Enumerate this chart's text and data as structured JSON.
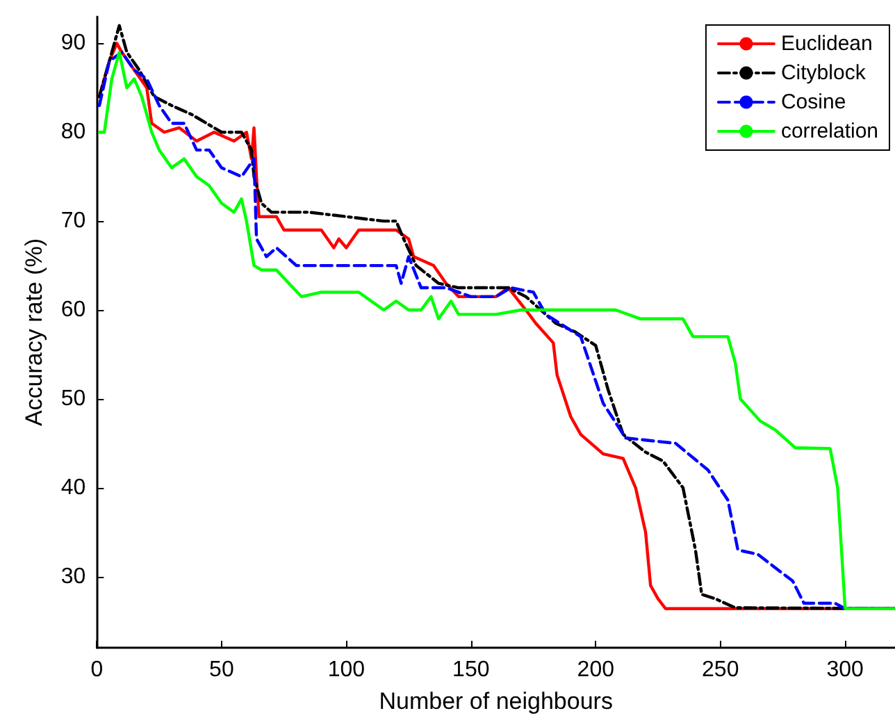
{
  "chart_data": {
    "type": "line",
    "xlabel": "Number of neighbours",
    "ylabel": "Accuracy rate (%)",
    "xlim": [
      0,
      320
    ],
    "xticks": [
      0,
      50,
      100,
      150,
      200,
      250,
      300
    ],
    "ylim": [
      22,
      93
    ],
    "yticks": [
      30,
      40,
      50,
      60,
      70,
      80,
      90
    ],
    "grid": false,
    "legend": "top right",
    "marker": "none",
    "series": [
      {
        "name": "Euclidean",
        "color": "#ff0000",
        "line_style": "solid",
        "x": [
          1,
          5,
          8,
          10,
          15,
          20,
          22,
          27,
          33,
          40,
          47,
          55,
          60,
          62,
          63,
          64,
          65,
          72,
          75,
          90,
          95,
          97,
          100,
          105,
          120,
          125,
          127,
          135,
          140,
          145,
          160,
          165,
          172,
          176,
          183,
          184.5,
          190,
          194,
          203,
          211,
          216,
          220,
          222,
          225,
          228,
          320
        ],
        "values": [
          84,
          88,
          90,
          89,
          87,
          85,
          81,
          80,
          80.5,
          79,
          80,
          79,
          80,
          77,
          80.5,
          75,
          70.5,
          70.5,
          69,
          69,
          67,
          68,
          67,
          69,
          69,
          68,
          66,
          65,
          63,
          61.5,
          61.5,
          62.5,
          60,
          58.5,
          56.3,
          52.7,
          48,
          46,
          43.8,
          43.3,
          40,
          35,
          29,
          27.5,
          26.4,
          26.4
        ]
      },
      {
        "name": "Cityblock",
        "color": "#000000",
        "line_style": "dashdot",
        "x": [
          1,
          5,
          9,
          12,
          17,
          23,
          30,
          38,
          50,
          58,
          62,
          63,
          66,
          70,
          85,
          100,
          115,
          120,
          123,
          128,
          137,
          145,
          165,
          172,
          184,
          192,
          200,
          205,
          211,
          220,
          227,
          235,
          240,
          242.5,
          248,
          256,
          320
        ],
        "values": [
          84,
          88,
          92,
          89,
          87,
          84,
          83,
          82,
          80,
          80,
          78,
          75,
          72,
          71,
          71,
          70.5,
          70,
          70,
          68,
          65,
          63,
          62.5,
          62.5,
          61.5,
          58.5,
          57.5,
          56,
          51,
          46,
          44,
          43,
          40,
          33,
          28,
          27.5,
          26.5,
          26.4
        ]
      },
      {
        "name": "Cosine",
        "color": "#0000ff",
        "line_style": "dashed",
        "x": [
          1,
          5,
          10,
          15,
          20,
          25,
          30,
          35,
          40,
          45,
          50,
          58,
          63,
          64,
          68,
          72,
          80,
          120,
          122,
          125,
          130,
          140,
          150,
          160,
          166,
          175,
          180,
          194,
          203,
          212,
          232,
          245,
          253,
          257,
          265,
          279,
          283.5,
          296,
          300,
          320
        ],
        "values": [
          83,
          88,
          89,
          87,
          86,
          83,
          81,
          81,
          78,
          78,
          76,
          75,
          77,
          68,
          66,
          67,
          65,
          65,
          63,
          66,
          62.5,
          62.5,
          61.5,
          61.5,
          62.5,
          62,
          59.5,
          57,
          49.5,
          45.6,
          45,
          42,
          38.6,
          33,
          32.5,
          29.5,
          27,
          27,
          26.4,
          26.4
        ]
      },
      {
        "name": "correlation",
        "color": "#00ff00",
        "line_style": "solid",
        "x": [
          1,
          3,
          6,
          9,
          12,
          15,
          18,
          22,
          25,
          30,
          35,
          40,
          45,
          50,
          55,
          58,
          60,
          63,
          66,
          72,
          77,
          82,
          90,
          105,
          110,
          115,
          120,
          125,
          130,
          134,
          137,
          142,
          145,
          160,
          170,
          180,
          208,
          218,
          235,
          239,
          243,
          253,
          256,
          258,
          266,
          272,
          280,
          294,
          297,
          300,
          320
        ],
        "values": [
          80,
          80,
          86,
          89,
          85,
          86,
          84,
          80,
          78,
          76,
          77,
          75,
          74,
          72,
          71,
          72.5,
          70,
          65,
          64.5,
          64.5,
          63,
          61.5,
          62,
          62,
          61,
          60,
          61,
          60,
          60,
          61.5,
          59,
          61,
          59.5,
          59.5,
          60,
          60,
          60,
          59,
          59,
          57,
          57,
          57,
          54,
          50,
          47.5,
          46.5,
          44.5,
          44.4,
          40,
          26.4,
          26.4
        ]
      }
    ]
  }
}
